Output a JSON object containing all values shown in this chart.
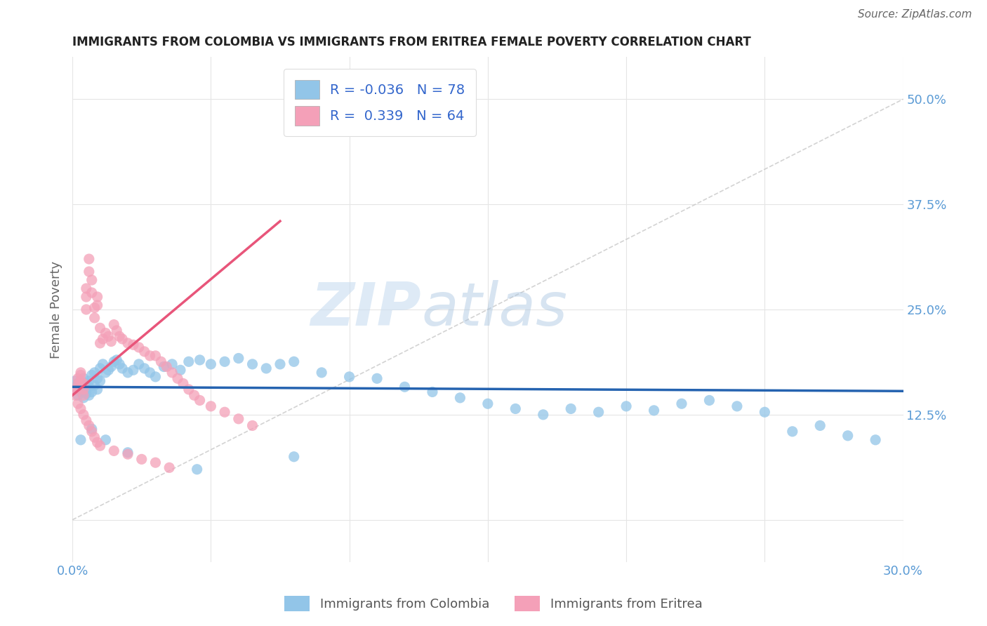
{
  "title": "IMMIGRANTS FROM COLOMBIA VS IMMIGRANTS FROM ERITREA FEMALE POVERTY CORRELATION CHART",
  "source": "Source: ZipAtlas.com",
  "ylabel": "Female Poverty",
  "xlim": [
    0.0,
    0.3
  ],
  "ylim": [
    -0.05,
    0.55
  ],
  "xticks": [
    0.0,
    0.05,
    0.1,
    0.15,
    0.2,
    0.25,
    0.3
  ],
  "xtick_labels": [
    "0.0%",
    "",
    "",
    "",
    "",
    "",
    "30.0%"
  ],
  "yticks": [
    0.0,
    0.125,
    0.25,
    0.375,
    0.5
  ],
  "ytick_labels": [
    "",
    "12.5%",
    "25.0%",
    "37.5%",
    "50.0%"
  ],
  "colombia_color": "#92C5E8",
  "eritrea_color": "#F4A0B8",
  "trend_colombia_color": "#2563B0",
  "trend_eritrea_color": "#E8557A",
  "diagonal_color": "#C8C8C8",
  "r_colombia": -0.036,
  "n_colombia": 78,
  "r_eritrea": 0.339,
  "n_eritrea": 64,
  "legend_label_colombia": "Immigrants from Colombia",
  "legend_label_eritrea": "Immigrants from Eritrea",
  "watermark_zip": "ZIP",
  "watermark_atlas": "atlas",
  "background_color": "#FFFFFF",
  "grid_color": "#E5E5E5",
  "colombia_x": [
    0.001,
    0.001,
    0.002,
    0.002,
    0.002,
    0.003,
    0.003,
    0.003,
    0.004,
    0.004,
    0.004,
    0.005,
    0.005,
    0.005,
    0.006,
    0.006,
    0.006,
    0.007,
    0.007,
    0.008,
    0.008,
    0.009,
    0.009,
    0.01,
    0.01,
    0.011,
    0.012,
    0.013,
    0.014,
    0.015,
    0.016,
    0.017,
    0.018,
    0.02,
    0.022,
    0.024,
    0.026,
    0.028,
    0.03,
    0.033,
    0.036,
    0.039,
    0.042,
    0.046,
    0.05,
    0.055,
    0.06,
    0.065,
    0.07,
    0.075,
    0.08,
    0.09,
    0.1,
    0.11,
    0.12,
    0.13,
    0.14,
    0.15,
    0.16,
    0.17,
    0.18,
    0.19,
    0.2,
    0.21,
    0.22,
    0.23,
    0.24,
    0.25,
    0.26,
    0.27,
    0.28,
    0.29,
    0.003,
    0.007,
    0.012,
    0.02,
    0.045,
    0.08
  ],
  "colombia_y": [
    0.155,
    0.165,
    0.148,
    0.162,
    0.158,
    0.152,
    0.16,
    0.155,
    0.145,
    0.168,
    0.158,
    0.15,
    0.162,
    0.155,
    0.148,
    0.165,
    0.158,
    0.152,
    0.172,
    0.16,
    0.175,
    0.155,
    0.168,
    0.165,
    0.18,
    0.185,
    0.175,
    0.178,
    0.182,
    0.188,
    0.19,
    0.185,
    0.18,
    0.175,
    0.178,
    0.185,
    0.18,
    0.175,
    0.17,
    0.182,
    0.185,
    0.178,
    0.188,
    0.19,
    0.185,
    0.188,
    0.192,
    0.185,
    0.18,
    0.185,
    0.188,
    0.175,
    0.17,
    0.168,
    0.158,
    0.152,
    0.145,
    0.138,
    0.132,
    0.125,
    0.132,
    0.128,
    0.135,
    0.13,
    0.138,
    0.142,
    0.135,
    0.128,
    0.105,
    0.112,
    0.1,
    0.095,
    0.095,
    0.108,
    0.095,
    0.08,
    0.06,
    0.075
  ],
  "eritrea_x": [
    0.001,
    0.001,
    0.002,
    0.002,
    0.002,
    0.003,
    0.003,
    0.003,
    0.004,
    0.004,
    0.004,
    0.005,
    0.005,
    0.005,
    0.006,
    0.006,
    0.007,
    0.007,
    0.008,
    0.008,
    0.009,
    0.009,
    0.01,
    0.01,
    0.011,
    0.012,
    0.013,
    0.014,
    0.015,
    0.016,
    0.017,
    0.018,
    0.02,
    0.022,
    0.024,
    0.026,
    0.028,
    0.03,
    0.032,
    0.034,
    0.036,
    0.038,
    0.04,
    0.042,
    0.044,
    0.046,
    0.05,
    0.055,
    0.06,
    0.065,
    0.002,
    0.003,
    0.004,
    0.005,
    0.006,
    0.007,
    0.008,
    0.009,
    0.01,
    0.015,
    0.02,
    0.025,
    0.03,
    0.035
  ],
  "eritrea_y": [
    0.155,
    0.148,
    0.158,
    0.162,
    0.168,
    0.175,
    0.165,
    0.172,
    0.155,
    0.162,
    0.148,
    0.25,
    0.275,
    0.265,
    0.31,
    0.295,
    0.27,
    0.285,
    0.252,
    0.24,
    0.255,
    0.265,
    0.21,
    0.228,
    0.215,
    0.222,
    0.218,
    0.212,
    0.232,
    0.225,
    0.218,
    0.215,
    0.21,
    0.208,
    0.205,
    0.2,
    0.195,
    0.195,
    0.188,
    0.182,
    0.175,
    0.168,
    0.162,
    0.155,
    0.148,
    0.142,
    0.135,
    0.128,
    0.12,
    0.112,
    0.138,
    0.132,
    0.125,
    0.118,
    0.112,
    0.105,
    0.098,
    0.092,
    0.088,
    0.082,
    0.078,
    0.072,
    0.068,
    0.062
  ],
  "colombia_trend_x": [
    0.0,
    0.3
  ],
  "colombia_trend_y": [
    0.158,
    0.153
  ],
  "eritrea_trend_x": [
    0.0,
    0.075
  ],
  "eritrea_trend_y": [
    0.148,
    0.355
  ]
}
